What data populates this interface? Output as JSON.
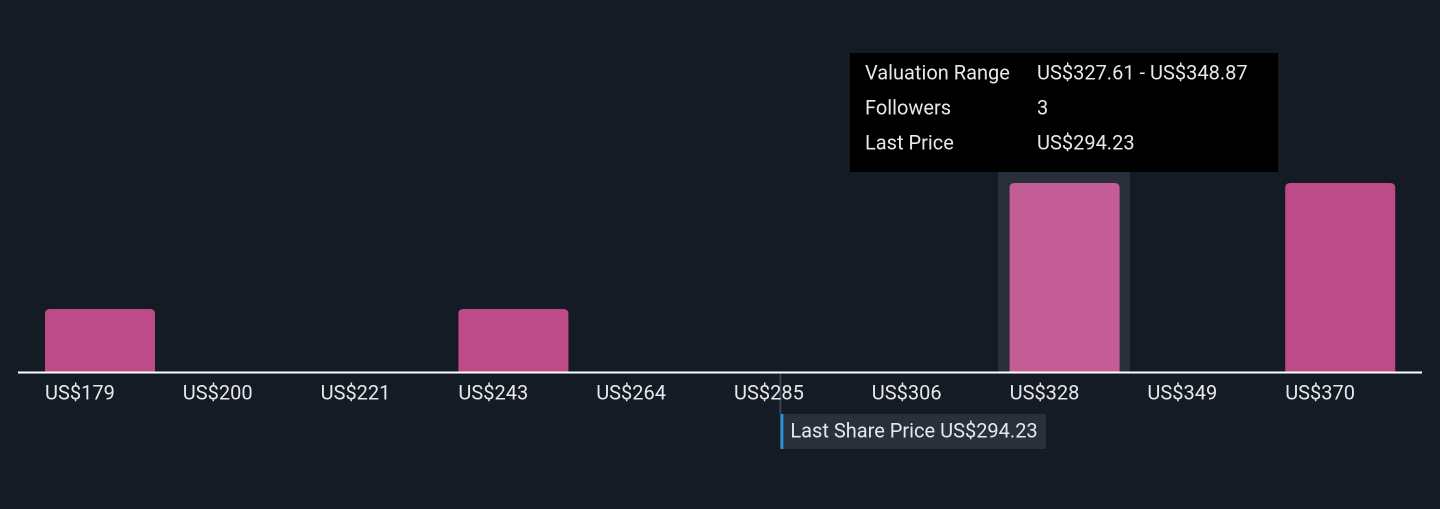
{
  "chart_data": {
    "type": "bar",
    "categories": [
      "US$179",
      "US$200",
      "US$221",
      "US$243",
      "US$264",
      "US$285",
      "US$306",
      "US$328",
      "US$349",
      "US$370"
    ],
    "values": [
      1,
      0,
      0,
      1,
      0,
      0,
      0,
      3,
      0,
      3
    ],
    "color": "#bd4b87",
    "highlight_color": "#c45c96",
    "ylim": [
      0,
      3
    ],
    "xlim": [
      178.79,
      391.39
    ],
    "last_price": {
      "label": "Last Share Price",
      "value_label": "US$294.23",
      "value": 294.23
    },
    "tooltip": {
      "rows": [
        {
          "label": "Valuation Range",
          "value": "US$327.61 - US$348.87"
        },
        {
          "label": "Followers",
          "value": "3"
        },
        {
          "label": "Last Price",
          "value": "US$294.23"
        }
      ]
    }
  }
}
